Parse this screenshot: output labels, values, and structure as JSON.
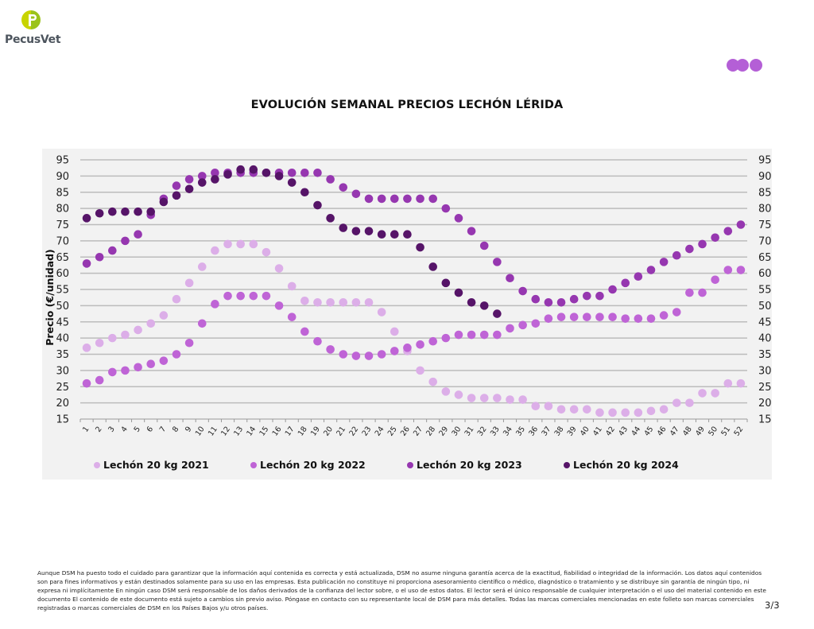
{
  "brand": {
    "name": "PecusVet",
    "logo_colors": {
      "left": "#c8d400",
      "right": "#9bc31c"
    }
  },
  "decor": {
    "dots_color": "#b45fd6"
  },
  "page": {
    "page_number": "3/3"
  },
  "disclaimer": "Aunque DSM ha puesto todo el cuidado para garantizar que la información aquí contenida es correcta y está actualizada, DSM no asume ninguna garantía acerca de la exactitud, fiabilidad o integridad de la información. Los datos aquí contenidos son para fines informativos y están destinados solamente para su uso en las empresas. Esta publicación no constituye ni proporciona asesoramiento científico o médico, diagnóstico o tratamiento y se distribuye sin garantía de ningún tipo, ni expresa ni implícitamente En ningún caso DSM será responsable de los daños derivados de la confianza del lector sobre, o el uso de estos datos. El lector será el único responsable de cualquier interpretación o el uso del material contenido en este documento El contenido de este documento está sujeto a cambios sin previo aviso. Póngase en contacto con su representante local de DSM para más detalles. Todas las marcas comerciales mencionadas en este folleto son marcas comerciales registradas o marcas comerciales de DSM en los Países Bajos y/u otros países.",
  "chart_data": {
    "type": "scatter",
    "title": "EVOLUCIÓN SEMANAL PRECIOS LECHÓN LÉRIDA",
    "xlabel": "",
    "ylabel": "Precio (€/unidad)",
    "ylim": [
      15,
      95
    ],
    "yticks": [
      15,
      20,
      25,
      30,
      35,
      40,
      45,
      50,
      55,
      60,
      65,
      70,
      75,
      80,
      85,
      90,
      95
    ],
    "secondary_y_axis": true,
    "grid": true,
    "legend_position": "bottom",
    "x": [
      1,
      2,
      3,
      4,
      5,
      6,
      7,
      8,
      9,
      10,
      11,
      12,
      13,
      14,
      15,
      16,
      17,
      18,
      19,
      20,
      21,
      22,
      23,
      24,
      25,
      26,
      27,
      28,
      29,
      30,
      31,
      32,
      33,
      34,
      35,
      36,
      37,
      38,
      39,
      40,
      41,
      42,
      43,
      44,
      45,
      46,
      47,
      48,
      49,
      50,
      51,
      52
    ],
    "series": [
      {
        "name": "Lechón 20 kg 2021",
        "color": "#dcaee8",
        "values": [
          37,
          38.5,
          40,
          41,
          42.5,
          44.5,
          47,
          52,
          57,
          62,
          67,
          69,
          69,
          69,
          66.5,
          61.5,
          56,
          51.5,
          51,
          51,
          51,
          51,
          51,
          48,
          42,
          36,
          30,
          26.5,
          23.5,
          22.5,
          21.5,
          21.5,
          21.5,
          21,
          21,
          19,
          19,
          18,
          18,
          18,
          17,
          17,
          17,
          17,
          17.5,
          18,
          20,
          20,
          23,
          23,
          26,
          26
        ]
      },
      {
        "name": "Lechón 20 kg 2022",
        "color": "#bf64d6",
        "values": [
          26,
          27,
          29.5,
          30,
          31,
          32,
          33,
          35,
          38.5,
          44.5,
          50.5,
          53,
          53,
          53,
          53,
          50,
          46.5,
          42,
          39,
          36.5,
          35,
          34.5,
          34.5,
          35,
          36,
          37,
          38,
          39,
          40,
          41,
          41,
          41,
          41,
          43,
          44,
          44.5,
          46,
          46.5,
          46.5,
          46.5,
          46.5,
          46.5,
          46,
          46,
          46,
          47,
          48,
          54,
          54,
          58,
          61,
          61
        ]
      },
      {
        "name": "Lechón 20 kg 2023",
        "color": "#9637b0",
        "values": [
          63,
          65,
          67,
          70,
          72,
          78,
          83,
          87,
          89,
          90,
          91,
          91,
          91,
          91,
          91,
          91,
          91,
          91,
          91,
          89,
          86.5,
          84.5,
          83,
          83,
          83,
          83,
          83,
          83,
          80,
          77,
          73,
          68.5,
          63.5,
          58.5,
          54.5,
          52,
          51,
          51,
          52,
          53,
          53,
          55,
          57,
          59,
          61,
          63.5,
          65.5,
          67.5,
          69,
          71,
          73,
          75
        ]
      },
      {
        "name": "Lechón 20 kg 2024",
        "color": "#561468",
        "values": [
          77,
          78.5,
          79,
          79,
          79,
          79,
          82,
          84,
          86,
          88,
          89,
          90.5,
          92,
          92,
          91,
          90,
          88,
          85,
          81,
          77,
          74,
          73,
          73,
          72,
          72,
          72,
          68,
          62,
          57,
          54,
          51,
          50,
          47.5
        ]
      }
    ]
  }
}
